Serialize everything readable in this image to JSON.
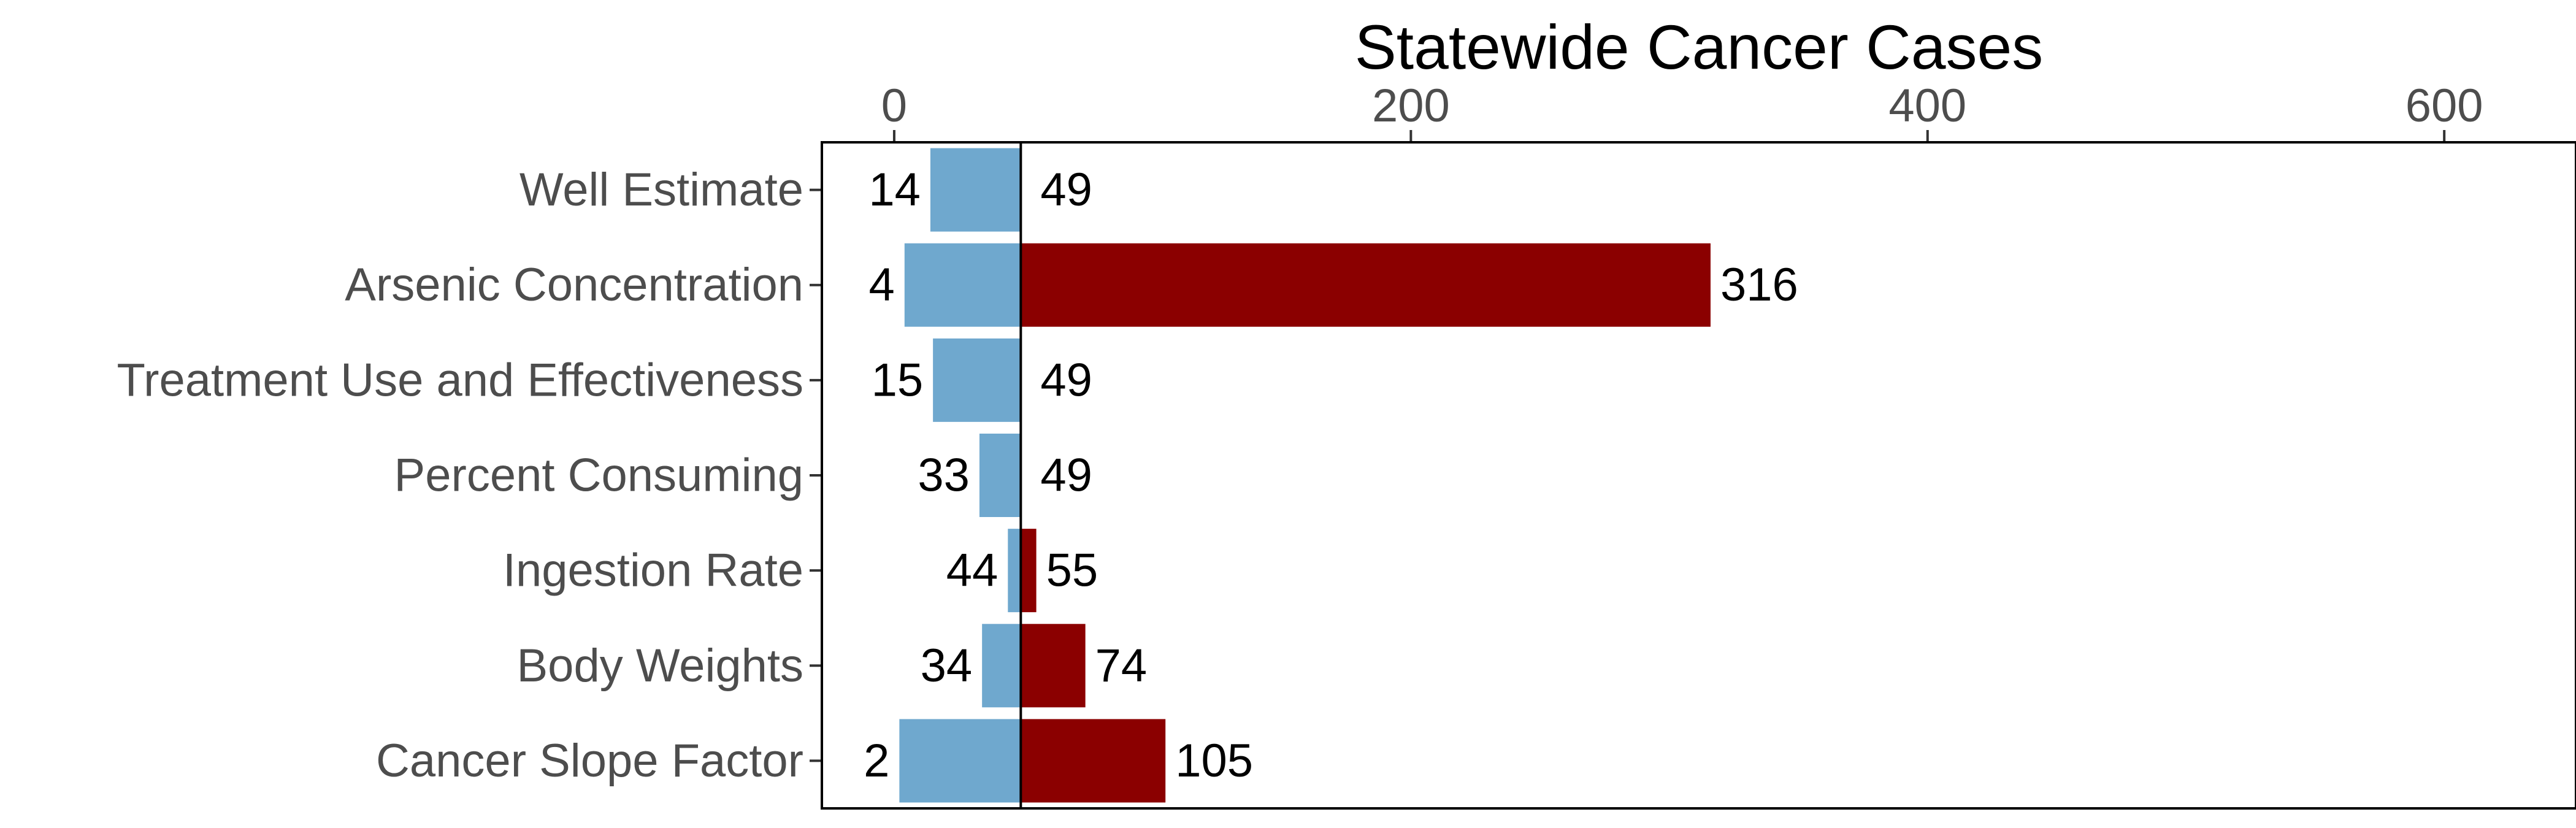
{
  "chart_data": {
    "type": "bar",
    "orientation": "horizontal",
    "title": "Statewide Cancer Cases",
    "xlabel": "",
    "ylabel": "",
    "x_axis_position": "top",
    "baseline": 49,
    "xlim": [
      -28,
      651
    ],
    "xticks": [
      0,
      200,
      400,
      600
    ],
    "xtick_labels": [
      "0",
      "200",
      "400",
      "600"
    ],
    "grid": false,
    "legend": "none",
    "categories": [
      "Well Estimate",
      "Arsenic Concentration",
      "Treatment Use and Effectiveness",
      "Percent Consuming",
      "Ingestion Rate",
      "Body Weights",
      "Cancer Slope Factor"
    ],
    "series": [
      {
        "values": [
          14,
          4,
          15,
          33,
          44,
          34,
          2
        ],
        "labels": [
          "14",
          "4",
          "15",
          "33",
          "44",
          "34",
          "2"
        ],
        "color": "#6fa8ce"
      },
      {
        "values": [
          49,
          316,
          49,
          49,
          55,
          74,
          105
        ],
        "labels": [
          "49",
          "316",
          "49",
          "49",
          "55",
          "74",
          "105"
        ],
        "color": "#8b0000"
      }
    ]
  }
}
